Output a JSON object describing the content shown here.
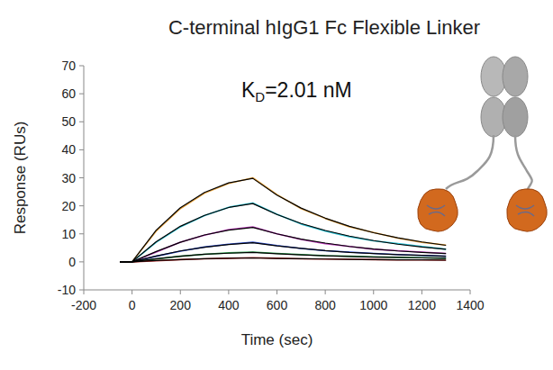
{
  "chart_data": {
    "type": "line",
    "title": "C-terminal hIgG1 Fc Flexible Linker",
    "annotation": {
      "main": "K",
      "subscript": "D",
      "rest": "=2.01 nM"
    },
    "x_label": "Time (sec)",
    "y_label": "Response (RUs)",
    "x": [
      -50,
      0,
      100,
      200,
      300,
      400,
      500,
      600,
      700,
      800,
      900,
      1000,
      1100,
      1200,
      1300
    ],
    "series": [
      {
        "color": "#e8a33c",
        "values": [
          0,
          0,
          11,
          19,
          24.5,
          28,
          30,
          24,
          19,
          15.5,
          12.5,
          10.5,
          8.5,
          7,
          6
        ]
      },
      {
        "color": "#2ec4d6",
        "values": [
          0,
          0,
          7,
          12.5,
          16.5,
          19.5,
          21,
          17,
          13.5,
          11,
          9,
          7.5,
          6.5,
          5.5,
          4.5
        ]
      },
      {
        "color": "#c040c0",
        "values": [
          0,
          0,
          3.5,
          7,
          9.5,
          11.5,
          12.5,
          10,
          8,
          6.5,
          5.5,
          4.5,
          4,
          3.5,
          3
        ]
      },
      {
        "color": "#3050d0",
        "values": [
          0,
          0,
          2,
          3.8,
          5.3,
          6.3,
          7,
          5.8,
          4.8,
          4,
          3.5,
          3,
          2.6,
          2.3,
          2
        ]
      },
      {
        "color": "#30a050",
        "values": [
          0,
          0,
          1,
          2,
          2.7,
          3.2,
          3.5,
          3,
          2.6,
          2.2,
          2,
          1.8,
          1.6,
          1.5,
          1.3
        ]
      },
      {
        "color": "#c03030",
        "values": [
          0,
          0,
          0.4,
          0.8,
          1.1,
          1.3,
          1.5,
          1.3,
          1.1,
          1,
          0.9,
          0.8,
          0.7,
          0.7,
          0.6
        ]
      },
      {
        "color": "#000000",
        "values": [
          0,
          0,
          11.3,
          19.3,
          24.8,
          28.2,
          29.8,
          23.8,
          19.2,
          15.6,
          12.7,
          10.4,
          8.6,
          7.1,
          5.9
        ]
      },
      {
        "color": "#000000",
        "values": [
          0,
          0,
          7.2,
          12.7,
          16.6,
          19.4,
          20.8,
          16.9,
          13.7,
          11.2,
          9.2,
          7.6,
          6.3,
          5.3,
          4.5
        ]
      },
      {
        "color": "#000000",
        "values": [
          0,
          0,
          3.7,
          7,
          9.6,
          11.3,
          12.3,
          10,
          8.1,
          6.7,
          5.5,
          4.6,
          3.9,
          3.4,
          3
        ]
      },
      {
        "color": "#000000",
        "values": [
          0,
          0,
          2.1,
          3.9,
          5.2,
          6.2,
          6.8,
          5.7,
          4.8,
          4,
          3.4,
          3,
          2.6,
          2.3,
          2
        ]
      },
      {
        "color": "#000000",
        "values": [
          0,
          0,
          1.1,
          2,
          2.7,
          3.1,
          3.4,
          2.9,
          2.5,
          2.2,
          1.9,
          1.7,
          1.6,
          1.4,
          1.3
        ]
      },
      {
        "color": "#000000",
        "values": [
          0,
          0,
          0.5,
          0.8,
          1.1,
          1.3,
          1.4,
          1.2,
          1.1,
          1,
          0.9,
          0.8,
          0.7,
          0.7,
          0.6
        ]
      }
    ],
    "xlim": [
      -200,
      1400
    ],
    "xticks": [
      -200,
      0,
      200,
      400,
      600,
      800,
      1000,
      1200,
      1400
    ],
    "ylim": [
      -10,
      70
    ],
    "yticks": [
      -10,
      0,
      10,
      20,
      30,
      40,
      50,
      60,
      70
    ],
    "grid": false
  }
}
